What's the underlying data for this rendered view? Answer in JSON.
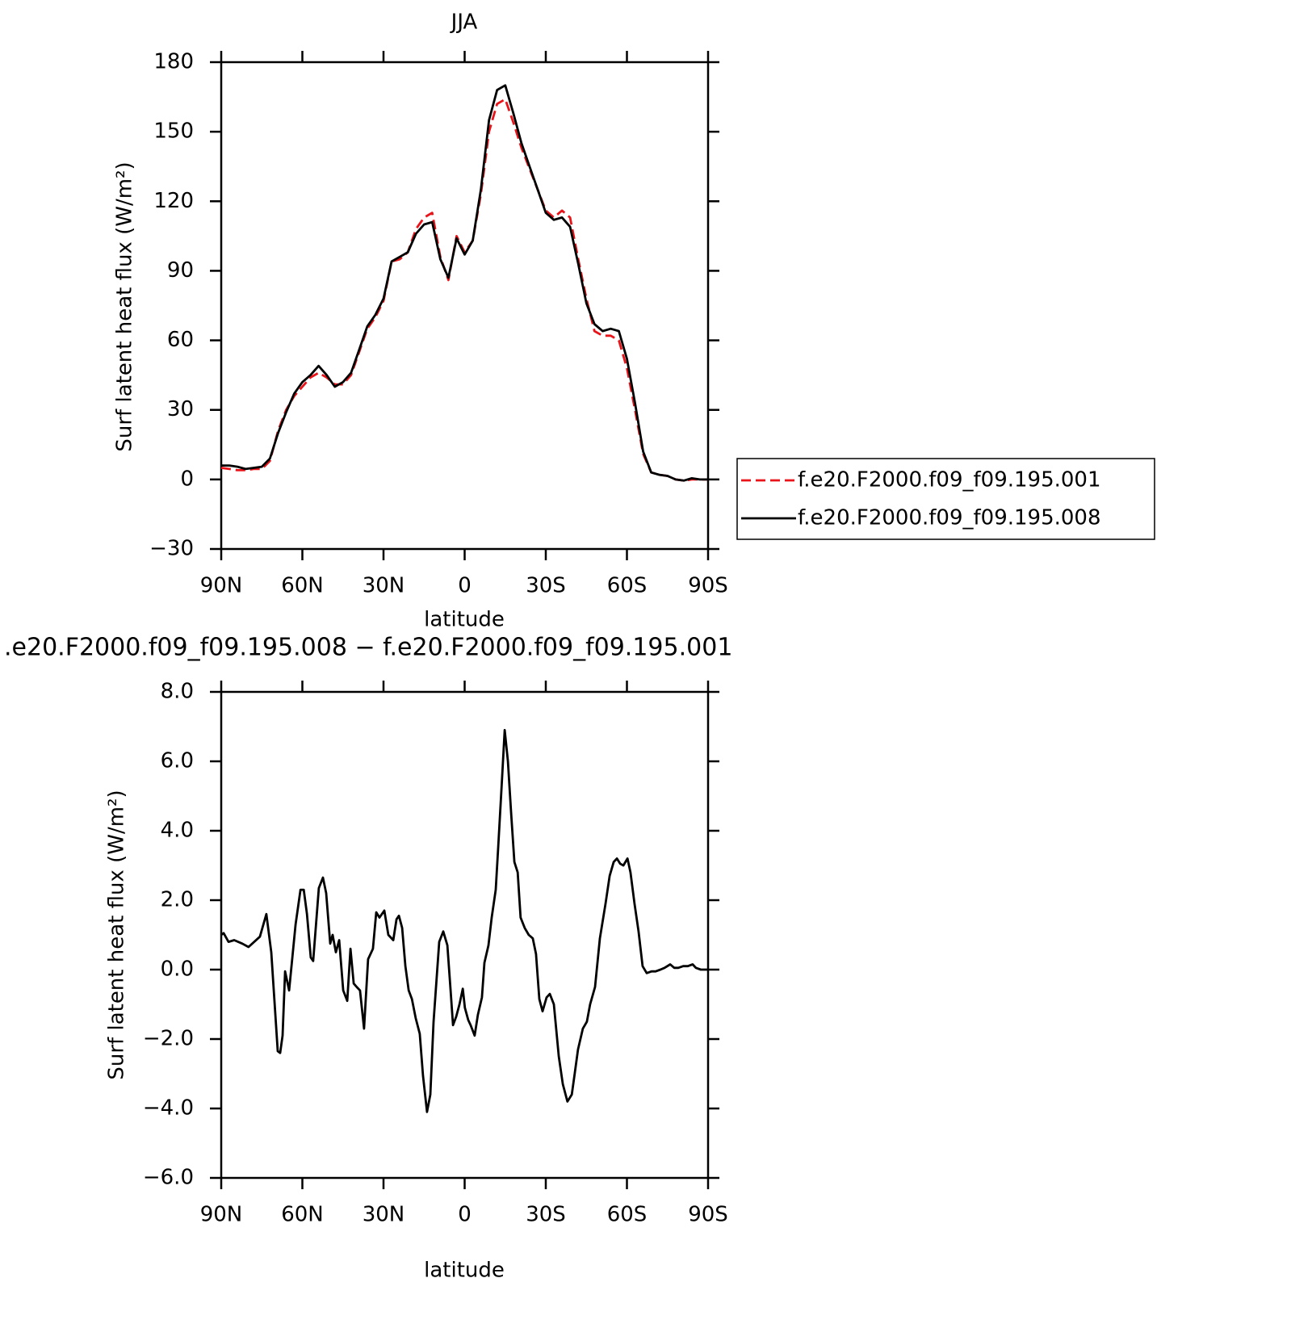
{
  "chart_data": [
    {
      "type": "line",
      "title": "JJA",
      "xlabel": "latitude",
      "ylabel": "Surf latent heat flux (W/m²)",
      "x": [
        90,
        87,
        84,
        81,
        78,
        75,
        72,
        69,
        66,
        63,
        60,
        57,
        54,
        51,
        48,
        45,
        42,
        39,
        36,
        33,
        30,
        27,
        24,
        21,
        18,
        15,
        12,
        9,
        6,
        3,
        0,
        -3,
        -6,
        -9,
        -12,
        -15,
        -18,
        -21,
        -24,
        -27,
        -30,
        -33,
        -36,
        -39,
        -42,
        -45,
        -48,
        -51,
        -54,
        -57,
        -60,
        -63,
        -66,
        -69,
        -72,
        -75,
        -78,
        -81,
        -84,
        -87,
        -90
      ],
      "series": [
        {
          "name": "f.e20.F2000.f09_f09.195.001",
          "color": "#e8141a",
          "dashed": true,
          "values": [
            5,
            4.5,
            4,
            4,
            4.5,
            4.5,
            8,
            21,
            30,
            36,
            40,
            44,
            46,
            44,
            41,
            41,
            45,
            55,
            65,
            70,
            77,
            94,
            95,
            98,
            108,
            113,
            115,
            96,
            86,
            105,
            98,
            103,
            123,
            150,
            162,
            164,
            154,
            143,
            134,
            125,
            116,
            113,
            116,
            113,
            95,
            78,
            64,
            62,
            62,
            60,
            48,
            30,
            11,
            3,
            2,
            1.5,
            0,
            -0.5,
            0,
            0,
            0
          ]
        },
        {
          "name": "f.e20.F2000.f09_f09.195.008",
          "color": "#000000",
          "dashed": false,
          "values": [
            6,
            6,
            5.5,
            4.5,
            5,
            5.5,
            9,
            20,
            29,
            37,
            42,
            45,
            49,
            45,
            40,
            42,
            46,
            56,
            66,
            71,
            78,
            94,
            96,
            98,
            106,
            110,
            111,
            95,
            87,
            104,
            97,
            103,
            125,
            155,
            168,
            170,
            158,
            145,
            135,
            125,
            115,
            112,
            113,
            109,
            93,
            76,
            67,
            64,
            65,
            64,
            52,
            33,
            12,
            3,
            2,
            1.5,
            0,
            -0.5,
            0.5,
            0,
            0
          ]
        }
      ],
      "xlim": [
        90,
        -90
      ],
      "xticks": [
        {
          "value": 90,
          "label": "90N"
        },
        {
          "value": 60,
          "label": "60N"
        },
        {
          "value": 30,
          "label": "30N"
        },
        0,
        {
          "value": -30,
          "label": "30S"
        },
        {
          "value": -60,
          "label": "60S"
        },
        {
          "value": -90,
          "label": "90S"
        }
      ],
      "ylim": [
        -30,
        180
      ],
      "yticks": [
        {
          "value": -30,
          "label": "−30"
        },
        0,
        30,
        60,
        90,
        120,
        150,
        180
      ],
      "legend": "outside right"
    },
    {
      "type": "line",
      "title": ".e20.F2000.f09_f09.195.008 − f.e20.F2000.f09_f09.195.001",
      "xlabel": "latitude",
      "ylabel": "Surf latent heat flux (W/m²)",
      "color": "#000000",
      "x": [
        90,
        89.1,
        87.3,
        85.2,
        82.2,
        79.9,
        75.7,
        73.3,
        71.5,
        69.1,
        68.2,
        67.3,
        66.4,
        64.9,
        62.5,
        60.7,
        59.5,
        58.3,
        56.9,
        56,
        53.9,
        52.4,
        51.2,
        49.7,
        48.8,
        47.6,
        46.4,
        44.9,
        43.4,
        42.2,
        41,
        39.9,
        38.7,
        37.2,
        35.7,
        33.9,
        32.7,
        31.5,
        29.7,
        28.2,
        26.4,
        25.2,
        24.3,
        23.1,
        21.9,
        20.7,
        19.5,
        18.1,
        16.6,
        15.4,
        13.9,
        12.7,
        11.5,
        9.4,
        7.9,
        6.4,
        5.2,
        4.3,
        3.1,
        1.9,
        0.7,
        -0.1,
        -1.3,
        -2.2,
        -3.7,
        -4.9,
        -6.4,
        -7.3,
        -8.8,
        -10,
        -11.5,
        -12.4,
        -13.6,
        -14.8,
        -16,
        -17.2,
        -18.4,
        -19.6,
        -20.7,
        -22.2,
        -23.7,
        -25.2,
        -26.4,
        -27.6,
        -28.8,
        -30.3,
        -31.5,
        -33,
        -34.8,
        -36.3,
        -38,
        -39.6,
        -40.7,
        -41.9,
        -43.7,
        -45.2,
        -46.4,
        -48.2,
        -50,
        -52.1,
        -53.6,
        -55.1,
        -56.3,
        -57.5,
        -58.7,
        -60.2,
        -61.3,
        -62.8,
        -64.3,
        -65.8,
        -67.3,
        -69.1,
        -70.6,
        -72.4,
        -73.9,
        -76,
        -77.5,
        -79,
        -80.8,
        -82.5,
        -84.3,
        -85.5,
        -87.3,
        -90
      ],
      "values": [
        1.0,
        1.05,
        0.8,
        0.85,
        0.75,
        0.65,
        0.95,
        1.6,
        0.5,
        -2.35,
        -2.4,
        -1.9,
        -0.05,
        -0.6,
        1.3,
        2.3,
        2.3,
        1.6,
        0.35,
        0.25,
        2.35,
        2.65,
        2.2,
        0.75,
        1.0,
        0.5,
        0.85,
        -0.6,
        -0.9,
        0.6,
        -0.4,
        -0.5,
        -0.6,
        -1.7,
        0.3,
        0.6,
        1.65,
        1.5,
        1.7,
        1.0,
        0.85,
        1.45,
        1.55,
        1.2,
        0.1,
        -0.6,
        -0.85,
        -1.4,
        -1.85,
        -3.05,
        -4.1,
        -3.6,
        -1.5,
        0.8,
        1.1,
        0.7,
        -0.6,
        -1.6,
        -1.35,
        -1.0,
        -0.55,
        -1.1,
        -1.45,
        -1.6,
        -1.9,
        -1.3,
        -0.8,
        0.2,
        0.7,
        1.5,
        2.3,
        3.5,
        5.2,
        6.9,
        6.0,
        4.5,
        3.1,
        2.8,
        1.5,
        1.2,
        1.0,
        0.9,
        0.45,
        -0.85,
        -1.2,
        -0.8,
        -0.7,
        -1.0,
        -2.5,
        -3.3,
        -3.8,
        -3.6,
        -3.0,
        -2.3,
        -1.7,
        -1.5,
        -1.0,
        -0.5,
        0.9,
        1.9,
        2.7,
        3.1,
        3.2,
        3.05,
        3.0,
        3.2,
        2.8,
        1.9,
        1.1,
        0.1,
        -0.1,
        -0.05,
        -0.05,
        0.0,
        0.05,
        0.15,
        0.05,
        0.05,
        0.1,
        0.1,
        0.15,
        0.05,
        0.0,
        0.0
      ],
      "xlim": [
        90,
        -90
      ],
      "xticks": [
        {
          "value": 90,
          "label": "90N"
        },
        {
          "value": 60,
          "label": "60N"
        },
        {
          "value": 30,
          "label": "30N"
        },
        0,
        {
          "value": -30,
          "label": "30S"
        },
        {
          "value": -60,
          "label": "60S"
        },
        {
          "value": -90,
          "label": "90S"
        }
      ],
      "ylim": [
        -6,
        8
      ],
      "yticks": [
        {
          "value": -6,
          "label": "−6.0"
        },
        {
          "value": -4,
          "label": "−4.0"
        },
        {
          "value": -2,
          "label": "−2.0"
        },
        {
          "value": 0,
          "label": "0.0"
        },
        {
          "value": 2,
          "label": "2.0"
        },
        {
          "value": 4,
          "label": "4.0"
        },
        {
          "value": 6,
          "label": "6.0"
        },
        {
          "value": 8,
          "label": "8.0"
        }
      ]
    }
  ]
}
